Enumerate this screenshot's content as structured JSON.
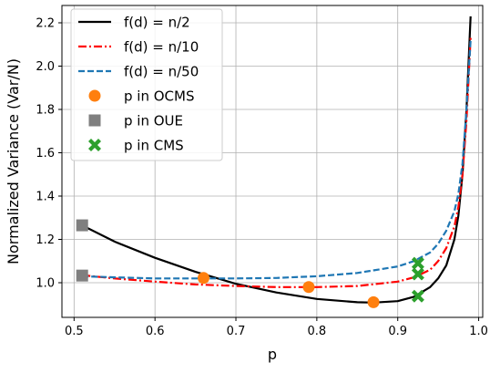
{
  "chart_data": {
    "type": "line",
    "title": "",
    "xlabel": "p",
    "ylabel": "Normalized Variance (Var/N)",
    "xlim": [
      0.485,
      1.005
    ],
    "ylim": [
      0.84,
      2.28
    ],
    "grid": true,
    "legend_position": "top-left",
    "x_ticks": [
      0.5,
      0.6,
      0.7,
      0.8,
      0.9,
      1.0
    ],
    "x_tick_labels": [
      "0.5",
      "0.6",
      "0.7",
      "0.8",
      "0.9",
      "1.0"
    ],
    "y_ticks": [
      1.0,
      1.2,
      1.4,
      1.6,
      1.8,
      2.0,
      2.2
    ],
    "y_tick_labels": [
      "1.0",
      "1.2",
      "1.4",
      "1.6",
      "1.8",
      "2.0",
      "2.2"
    ],
    "series": [
      {
        "name": "f(d) = n/2",
        "color": "#000000",
        "dash": "solid",
        "x": [
          0.51,
          0.55,
          0.6,
          0.65,
          0.7,
          0.75,
          0.8,
          0.85,
          0.87,
          0.9,
          0.92,
          0.94,
          0.95,
          0.96,
          0.97,
          0.975,
          0.98,
          0.985,
          0.99
        ],
        "y": [
          1.265,
          1.19,
          1.115,
          1.05,
          0.995,
          0.955,
          0.925,
          0.91,
          0.908,
          0.915,
          0.935,
          0.98,
          1.02,
          1.08,
          1.2,
          1.31,
          1.5,
          1.8,
          2.23
        ]
      },
      {
        "name": "f(d) = n/10",
        "color": "#ff0000",
        "dash": "dashdot",
        "x": [
          0.51,
          0.55,
          0.6,
          0.65,
          0.7,
          0.75,
          0.8,
          0.85,
          0.9,
          0.92,
          0.94,
          0.95,
          0.96,
          0.97,
          0.975,
          0.98,
          0.985,
          0.99
        ],
        "y": [
          1.035,
          1.02,
          1.005,
          0.992,
          0.985,
          0.98,
          0.98,
          0.985,
          1.005,
          1.025,
          1.06,
          1.1,
          1.16,
          1.26,
          1.35,
          1.5,
          1.75,
          2.13
        ]
      },
      {
        "name": "f(d) = n/50",
        "color": "#1f77b4",
        "dash": "dashed",
        "x": [
          0.51,
          0.55,
          0.6,
          0.65,
          0.7,
          0.75,
          0.8,
          0.85,
          0.9,
          0.92,
          0.94,
          0.95,
          0.96,
          0.97,
          0.975,
          0.98,
          0.985,
          0.99
        ],
        "y": [
          1.03,
          1.025,
          1.02,
          1.02,
          1.02,
          1.022,
          1.03,
          1.045,
          1.075,
          1.1,
          1.14,
          1.18,
          1.24,
          1.33,
          1.41,
          1.55,
          1.8,
          2.12
        ]
      }
    ],
    "markers": [
      {
        "name": "p in OCMS",
        "marker": "circle",
        "color": "#ff7f0e",
        "points": [
          [
            0.66,
            1.022
          ],
          [
            0.79,
            0.98
          ],
          [
            0.87,
            0.91
          ]
        ]
      },
      {
        "name": "p in OUE",
        "marker": "square",
        "color": "#7f7f7f",
        "points": [
          [
            0.51,
            1.265
          ],
          [
            0.51,
            1.033
          ]
        ]
      },
      {
        "name": "p in CMS",
        "marker": "x",
        "color": "#2ca02c",
        "points": [
          [
            0.925,
            1.09
          ],
          [
            0.925,
            1.04
          ],
          [
            0.925,
            0.938
          ]
        ]
      }
    ]
  }
}
